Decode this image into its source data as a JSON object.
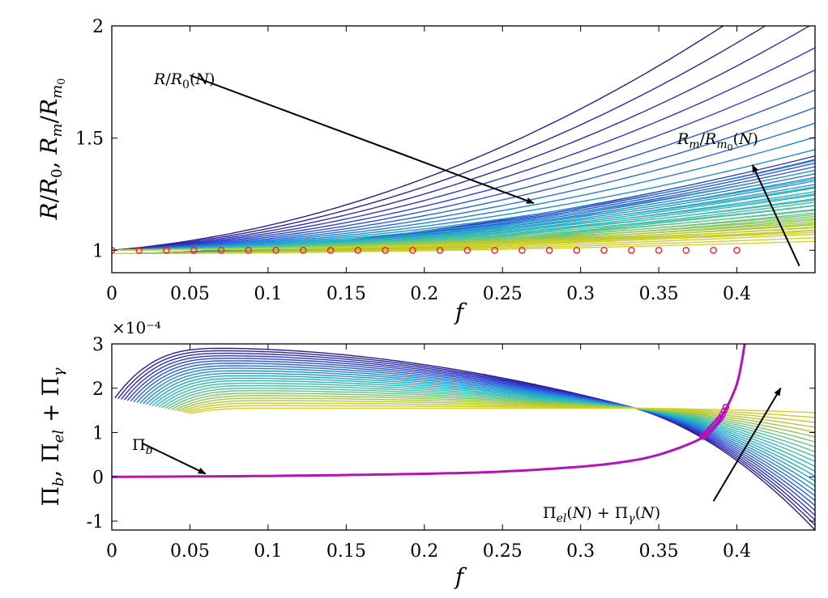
{
  "colors": {
    "axis": "#000000",
    "marker": "#e8232a",
    "pi_b_curve": "#b512b8",
    "colormap": [
      "#2b1a92",
      "#2f40d6",
      "#2383d9",
      "#1fb3c7",
      "#4ec49a",
      "#a9c83f",
      "#d8cf1f"
    ]
  },
  "chart_data": [
    {
      "type": "line",
      "xlabel": "f",
      "ylabel": "R/R0, Rm/Rm0",
      "xlim": [
        0,
        0.45
      ],
      "ylim": [
        0.9,
        2.0
      ],
      "xticks": [
        "0",
        "0.05",
        "0.1",
        "0.15",
        "0.2",
        "0.25",
        "0.3",
        "0.35",
        "0.4"
      ],
      "yticks": [
        "1",
        "1.5",
        "2"
      ],
      "grid": false,
      "family_R_over_R0": {
        "count": 25,
        "model": "R = 1 + a*f + b*f^2",
        "a_range": [
          0.6,
          0.02
        ],
        "curvature_range": [
          5.0,
          0.35
        ]
      },
      "family_Rm_over_Rm0": {
        "count": 25,
        "start_value": 0.985,
        "end_range_at_x_0_45": [
          1.42,
          1.04
        ]
      },
      "markers": {
        "x": [
          0,
          0.0175,
          0.035,
          0.0525,
          0.07,
          0.0875,
          0.105,
          0.1225,
          0.14,
          0.1575,
          0.175,
          0.1925,
          0.21,
          0.2275,
          0.245,
          0.2625,
          0.28,
          0.2975,
          0.315,
          0.3325,
          0.35,
          0.3675,
          0.385,
          0.4
        ],
        "y": 1.0
      },
      "annotations": [
        {
          "text": "R/R0(N)",
          "from": [
            0.05,
            1.78
          ],
          "to": [
            0.27,
            1.21
          ]
        },
        {
          "text": "Rm/Rm0(N)",
          "from": [
            0.44,
            0.93
          ],
          "to": [
            0.41,
            1.38
          ]
        }
      ]
    },
    {
      "type": "line",
      "xlabel": "f",
      "ylabel": "Πb, Πel + Πγ",
      "xlim": [
        0,
        0.45
      ],
      "ylim": [
        -1.2,
        3.0
      ],
      "y_exponent": "×10⁻⁴",
      "xticks": [
        "0",
        "0.05",
        "0.1",
        "0.15",
        "0.2",
        "0.25",
        "0.3",
        "0.35",
        "0.4"
      ],
      "yticks": [
        "-1",
        "0",
        "1",
        "2",
        "3"
      ],
      "grid": false,
      "family_Pi_el_plus_Pi_gamma": {
        "count": 25,
        "start_x": [
          0.002,
          0.05
        ],
        "peak_value": [
          2.9,
          1.55
        ],
        "crossing_point": [
          0.335,
          1.55
        ],
        "end_value_at_x_0_45": [
          -1.2,
          1.45
        ]
      },
      "Pi_b": {
        "x": [
          0,
          0.1,
          0.2,
          0.25,
          0.3,
          0.33,
          0.35,
          0.37,
          0.38,
          0.39,
          0.4,
          0.405
        ],
        "y": [
          0,
          0.02,
          0.07,
          0.12,
          0.23,
          0.35,
          0.5,
          0.75,
          0.95,
          1.35,
          2.1,
          3.0
        ]
      },
      "annotations": [
        {
          "text": "Πb",
          "from": [
            0.02,
            0.75
          ],
          "to": [
            0.06,
            0.07
          ]
        },
        {
          "text": "Πel(N) + Πγ(N)",
          "from": [
            0.385,
            -0.55
          ],
          "to": [
            0.428,
            2.0
          ]
        }
      ]
    }
  ]
}
